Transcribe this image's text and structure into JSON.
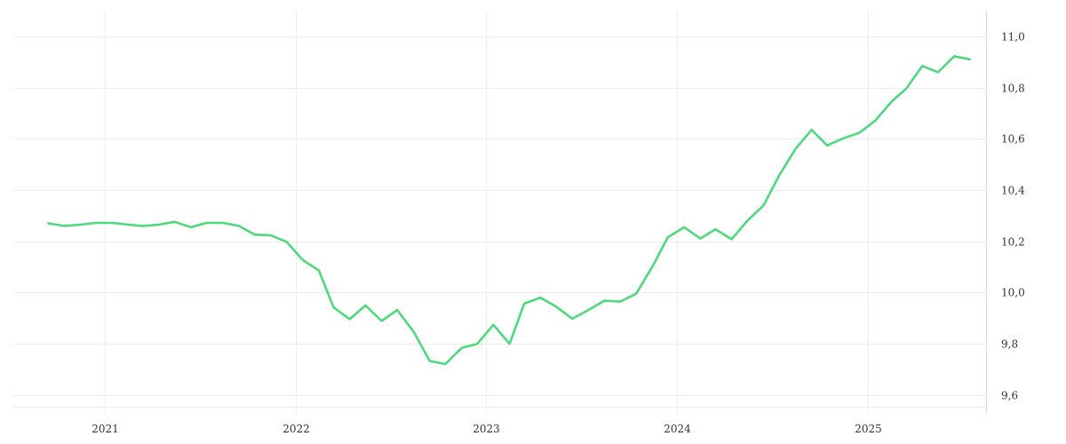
{
  "chart_data": {
    "type": "line",
    "title": "",
    "xlabel": "",
    "ylabel": "",
    "x_tick_labels": [
      "2021",
      "2022",
      "2023",
      "2024",
      "2025"
    ],
    "y_tick_labels": [
      "9,6",
      "9,8",
      "10,0",
      "10,2",
      "10,4",
      "10,6",
      "10,8",
      "11,0"
    ],
    "y_ticks": [
      9.6,
      9.8,
      10.0,
      10.2,
      10.4,
      10.6,
      10.8,
      11.0
    ],
    "ylim": [
      9.52,
      11.1
    ],
    "xlim": [
      "2020-07-10",
      "2025-08-15"
    ],
    "grid": true,
    "y_axis_position": "right",
    "colors": {
      "line": "#4fd87d",
      "grid": "#ececec",
      "axis": "#d9d9d9",
      "text": "#333333"
    },
    "series": [
      {
        "x": [
          "2020-09",
          "2020-10",
          "2020-11",
          "2020-12",
          "2021-01",
          "2021-02",
          "2021-03",
          "2021-04",
          "2021-05",
          "2021-06",
          "2021-07",
          "2021-08",
          "2021-09",
          "2021-10",
          "2021-11",
          "2021-12",
          "2022-01",
          "2022-02",
          "2022-03",
          "2022-04",
          "2022-05",
          "2022-06",
          "2022-07",
          "2022-08",
          "2022-09",
          "2022-10",
          "2022-11",
          "2022-12",
          "2023-01",
          "2023-02",
          "2023-03",
          "2023-04",
          "2023-05",
          "2023-06",
          "2023-07",
          "2023-08",
          "2023-09",
          "2023-10",
          "2023-11",
          "2023-12",
          "2024-01",
          "2024-02",
          "2024-03",
          "2024-04",
          "2024-05",
          "2024-06",
          "2024-07",
          "2024-08",
          "2024-09",
          "2024-10",
          "2024-11",
          "2024-12",
          "2025-01",
          "2025-02",
          "2025-03",
          "2025-04",
          "2025-05",
          "2025-06",
          "2025-07"
        ],
        "values": [
          10.27,
          10.26,
          10.265,
          10.272,
          10.272,
          10.265,
          10.26,
          10.265,
          10.276,
          10.255,
          10.272,
          10.272,
          10.26,
          10.226,
          10.223,
          10.198,
          10.127,
          10.086,
          9.942,
          9.896,
          9.95,
          9.889,
          9.932,
          9.848,
          9.733,
          9.721,
          9.784,
          9.8,
          9.874,
          9.8,
          9.957,
          9.98,
          9.945,
          9.898,
          9.931,
          9.968,
          9.965,
          9.995,
          10.1,
          10.216,
          10.255,
          10.211,
          10.247,
          10.208,
          10.28,
          10.34,
          10.457,
          10.56,
          10.635,
          10.574,
          10.602,
          10.623,
          10.671,
          10.745,
          10.795,
          10.884,
          10.86,
          10.922,
          10.91
        ]
      }
    ]
  }
}
